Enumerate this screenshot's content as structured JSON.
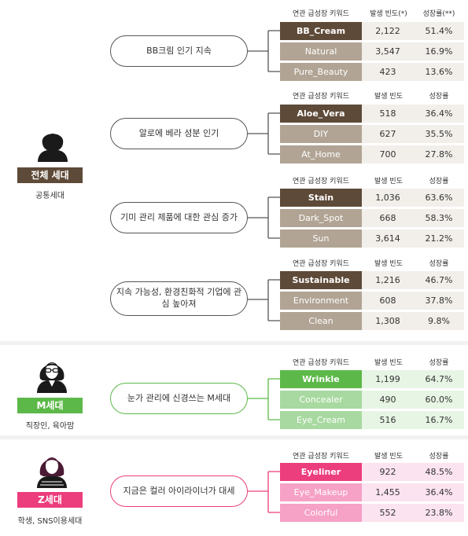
{
  "colors": {
    "brown_dark": "#5e4a38",
    "brown_mid": "#b1a494",
    "brown_light": "#f2efea",
    "green_dark": "#5cb949",
    "green_mid": "#a8d9a0",
    "green_light": "#e7f5e4",
    "pink_dark": "#ec3d7c",
    "pink_mid": "#f6a1c6",
    "pink_light": "#fbe3ef",
    "line_brown": "#555555",
    "line_green": "#5cb949",
    "line_pink": "#ec3d7c"
  },
  "table_header": {
    "keyword": "연관 급성장 키워드",
    "frequency": "발생 빈도",
    "frequency_first": "발생 빈도(*)",
    "growth": "성장률",
    "growth_first": "성장률(**)"
  },
  "groups": [
    {
      "id": "all",
      "badge": "전체 세대",
      "subtitle": "공통세대",
      "icon": "woman-silhouette-icon",
      "topics": [
        {
          "text": "BB크림 인기 지속",
          "rows": [
            {
              "keyword": "BB_Cream",
              "frequency": "2,122",
              "growth": "51.4%"
            },
            {
              "keyword": "Natural",
              "frequency": "3,547",
              "growth": "16.9%"
            },
            {
              "keyword": "Pure_Beauty",
              "frequency": "423",
              "growth": "13.6%"
            }
          ]
        },
        {
          "text": "알로에 베라 성분 인기",
          "rows": [
            {
              "keyword": "Aloe_Vera",
              "frequency": "518",
              "growth": "36.4%"
            },
            {
              "keyword": "DIY",
              "frequency": "627",
              "growth": "35.5%"
            },
            {
              "keyword": "At_Home",
              "frequency": "700",
              "growth": "27.8%"
            }
          ]
        },
        {
          "text": "기미 관리 제품에 대한 관심 증가",
          "rows": [
            {
              "keyword": "Stain",
              "frequency": "1,036",
              "growth": "63.6%"
            },
            {
              "keyword": "Dark_Spot",
              "frequency": "668",
              "growth": "58.3%"
            },
            {
              "keyword": "Sun",
              "frequency": "3,614",
              "growth": "21.2%"
            }
          ]
        },
        {
          "text": "지속 가능성, 환경친화적 기업에 관심 높아져",
          "rows": [
            {
              "keyword": "Sustainable",
              "frequency": "1,216",
              "growth": "46.7%"
            },
            {
              "keyword": "Environment",
              "frequency": "608",
              "growth": "37.8%"
            },
            {
              "keyword": "Clean",
              "frequency": "1,308",
              "growth": "9.8%"
            }
          ]
        }
      ]
    },
    {
      "id": "m",
      "badge": "M세대",
      "subtitle": "직장인, 육아맘",
      "icon": "woman-with-glasses-icon",
      "topics": [
        {
          "text": "눈가 관리에 신경쓰는 M세대",
          "rows": [
            {
              "keyword": "Wrinkle",
              "frequency": "1,199",
              "growth": "64.7%"
            },
            {
              "keyword": "Concealer",
              "frequency": "490",
              "growth": "60.0%"
            },
            {
              "keyword": "Eye_Cream",
              "frequency": "516",
              "growth": "16.7%"
            }
          ]
        }
      ]
    },
    {
      "id": "z",
      "badge": "Z세대",
      "subtitle": "학생, SNS이용세대",
      "icon": "young-woman-icon",
      "topics": [
        {
          "text": "지금은 컬러 아이라이너가 대세",
          "rows": [
            {
              "keyword": "Eyeliner",
              "frequency": "922",
              "growth": "48.5%"
            },
            {
              "keyword": "Eye_Makeup",
              "frequency": "1,455",
              "growth": "36.4%"
            },
            {
              "keyword": "Colorful",
              "frequency": "552",
              "growth": "23.8%"
            }
          ]
        }
      ]
    }
  ]
}
